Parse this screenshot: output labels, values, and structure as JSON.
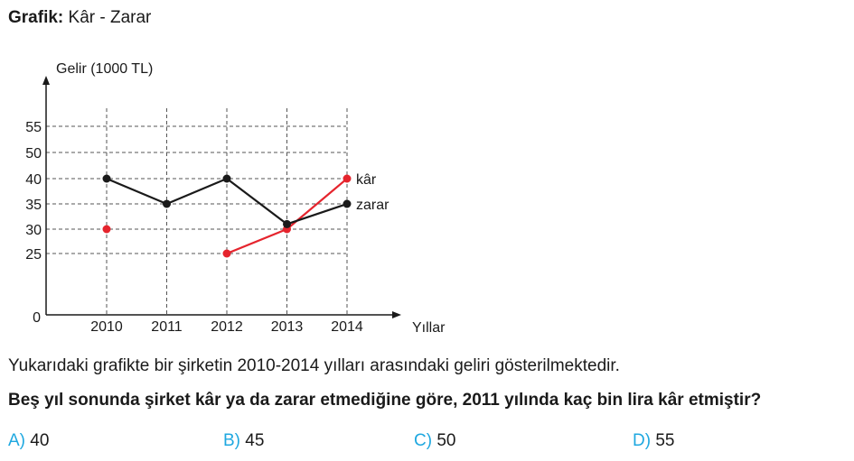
{
  "title": {
    "bold": "Grafik:",
    "rest": "Kâr - Zarar"
  },
  "chart_data": {
    "type": "line",
    "ylabel": "Gelir (1000 TL)",
    "xlabel": "Yıllar",
    "y_ticks": [
      55,
      50,
      40,
      35,
      30,
      25
    ],
    "origin_label": "0",
    "categories": [
      "2010",
      "2011",
      "2012",
      "2013",
      "2014"
    ],
    "grid": true,
    "series": [
      {
        "name": "kâr",
        "color": "#e5242d",
        "values": [
          30,
          null,
          25,
          30,
          40
        ],
        "connected_from_index": 2
      },
      {
        "name": "zarar",
        "color": "#1a1a1a",
        "values": [
          40,
          35,
          40,
          31,
          35
        ],
        "connected_from_index": 0
      }
    ]
  },
  "statement": "Yukarıdaki grafikte bir şirketin 2010-2014 yılları arasındaki geliri gösterilmektedir.",
  "question": "Beş yıl sonunda şirket kâr ya da zarar etmediğine göre,  2011 yılında kaç  bin lira kâr etmiştir?",
  "options": [
    {
      "letter": "A)",
      "text": "40"
    },
    {
      "letter": "B)",
      "text": "45"
    },
    {
      "letter": "C)",
      "text": "50"
    },
    {
      "letter": "D)",
      "text": "55"
    }
  ]
}
